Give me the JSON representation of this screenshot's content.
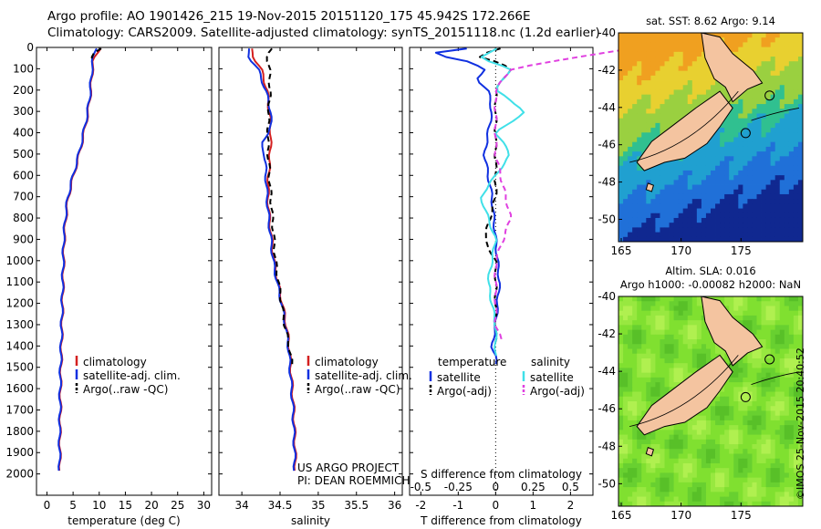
{
  "header": {
    "title_line1": "Argo profile: AO 1901426_215 19-Nov-2015 20151120_175 45.942S 172.266E",
    "title_line2": "Climatology: CARS2009. Satellite-adjusted climatology: synTS_20151118.nc (1.2d earlier)"
  },
  "colors": {
    "climatology": "#d42020",
    "satellite": "#1030e0",
    "argo": "#000000",
    "sat_salinity": "#40e0e8",
    "argo_salinity": "#e040e0",
    "land": "#f4c4a0"
  },
  "depth_axis": {
    "ticks": [
      "0",
      "100",
      "200",
      "300",
      "400",
      "500",
      "600",
      "700",
      "800",
      "900",
      "1000",
      "1100",
      "1200",
      "1300",
      "1400",
      "1500",
      "1600",
      "1700",
      "1800",
      "1900",
      "2000"
    ]
  },
  "chart_data": [
    {
      "type": "line",
      "xlabel": "temperature (deg C)",
      "xlim": [
        -2,
        31.5
      ],
      "ylim": [
        2100,
        0
      ],
      "xticks": [
        "0",
        "5",
        "10",
        "15",
        "20",
        "25",
        "30"
      ],
      "legend": [
        "climatology",
        "satellite-adj. clim.",
        "Argo(..raw -QC)"
      ],
      "series": [
        {
          "name": "climatology",
          "x": [
            10.1,
            9.6,
            8.9,
            8.7,
            8.4,
            7.9,
            7.1,
            6.2,
            5.1,
            4.1,
            3.6,
            3.3,
            3.2,
            3.1,
            3.0,
            2.9,
            2.8,
            2.7,
            2.6,
            2.6,
            2.5,
            2.5
          ],
          "y": [
            5,
            30,
            60,
            100,
            200,
            300,
            400,
            500,
            600,
            700,
            800,
            900,
            1000,
            1100,
            1200,
            1300,
            1400,
            1500,
            1600,
            1700,
            1800,
            2000
          ]
        },
        {
          "name": "satellite-adj. clim.",
          "x": [
            9.3,
            9.0,
            8.8,
            8.6,
            8.3,
            7.8,
            7.0,
            6.1,
            5.0,
            4.0,
            3.5,
            3.2,
            3.1,
            3.0,
            2.9,
            2.8,
            2.7,
            2.6,
            2.5,
            2.5,
            2.4,
            2.4
          ],
          "y": [
            5,
            30,
            60,
            100,
            200,
            300,
            400,
            500,
            600,
            700,
            800,
            900,
            1000,
            1100,
            1200,
            1300,
            1400,
            1500,
            1600,
            1700,
            1800,
            2000
          ]
        },
        {
          "name": "Argo(..raw -QC)",
          "x": [
            10.2,
            9.0,
            8.7,
            8.9
          ],
          "y": [
            5,
            25,
            50,
            80
          ]
        }
      ]
    },
    {
      "type": "line",
      "xlabel": "salinity",
      "xlim": [
        33.7,
        36.1
      ],
      "ylim": [
        2100,
        0
      ],
      "xticks": [
        "34",
        "34.5",
        "35",
        "35.5",
        "36"
      ],
      "legend": [
        "climatology",
        "satellite-adj. clim.",
        "Argo(..raw -QC)"
      ],
      "annotation_line1": "US ARGO PROJECT",
      "annotation_line2": "PI: DEAN ROEMMICH",
      "series": [
        {
          "name": "climatology",
          "x": [
            34.12,
            34.16,
            34.25,
            34.33,
            34.36,
            34.38,
            34.37,
            34.35,
            34.34,
            34.36,
            34.39,
            34.42,
            34.47,
            34.53,
            34.58,
            34.62,
            34.64,
            34.66,
            34.68,
            34.69,
            34.7,
            34.7
          ],
          "y": [
            5,
            50,
            100,
            200,
            300,
            400,
            500,
            600,
            700,
            800,
            900,
            1000,
            1100,
            1200,
            1300,
            1400,
            1500,
            1600,
            1700,
            1800,
            1900,
            2000
          ]
        },
        {
          "name": "satellite-adj. clim.",
          "x": [
            34.08,
            34.1,
            34.21,
            34.31,
            34.38,
            34.37,
            34.24,
            34.3,
            34.33,
            34.35,
            34.38,
            34.41,
            34.46,
            34.52,
            34.57,
            34.61,
            34.63,
            34.65,
            34.67,
            34.68,
            34.69,
            34.69
          ],
          "y": [
            5,
            50,
            100,
            200,
            300,
            400,
            450,
            500,
            700,
            800,
            900,
            1000,
            1100,
            1200,
            1300,
            1400,
            1500,
            1600,
            1700,
            1800,
            1900,
            2000
          ]
        },
        {
          "name": "Argo(..raw -QC)",
          "x": [
            34.38,
            34.34,
            34.34,
            34.36,
            34.37,
            34.35,
            34.34,
            34.36,
            34.4,
            34.44,
            34.5,
            34.56,
            34.62,
            34.66
          ],
          "y": [
            5,
            30,
            60,
            100,
            200,
            300,
            450,
            600,
            800,
            1000,
            1150,
            1300,
            1400,
            1500
          ]
        }
      ]
    },
    {
      "type": "line",
      "xlabel": "T difference from climatology",
      "xlabel2": "S difference from climatology",
      "xlim": [
        -2.3,
        2.6
      ],
      "ylim": [
        2100,
        0
      ],
      "xticks": [
        "-2",
        "-1",
        "0",
        "1",
        "2"
      ],
      "xticks2": [
        "-0.5",
        "-0.25",
        "0",
        "0.25",
        "0.5"
      ],
      "legend_title_t": "temperature",
      "legend_title_s": "salinity",
      "legend": [
        "satellite",
        "Argo(-adj)",
        "satellite",
        "Argo(-adj)"
      ],
      "series": [
        {
          "name": "temperature satellite",
          "x": [
            -0.8,
            -1.8,
            -0.8,
            -0.3,
            -0.5,
            -0.2,
            -0.1,
            -0.3,
            -0.1,
            0.0,
            0.1,
            0.0,
            -0.1,
            0.0,
            0.0
          ],
          "y": [
            5,
            30,
            60,
            100,
            150,
            200,
            300,
            500,
            700,
            900,
            1100,
            1300,
            1400,
            1450,
            1500
          ]
        },
        {
          "name": "temperature Argo(-adj)",
          "x": [
            0.1,
            -0.5,
            0.1,
            0.4,
            0.0,
            0.0,
            0.0,
            0.0,
            -0.3,
            0.0,
            0.0,
            0.0
          ],
          "y": [
            5,
            40,
            70,
            100,
            200,
            300,
            500,
            700,
            900,
            1000,
            1300,
            1400
          ]
        },
        {
          "name": "salinity satellite",
          "x": [
            0.0,
            -0.1,
            0.1,
            0.0,
            0.2,
            0.0,
            0.1,
            0.0,
            -0.1,
            0.0,
            -0.05,
            0.0,
            0.0
          ],
          "y": [
            5,
            50,
            100,
            200,
            300,
            400,
            500,
            600,
            700,
            900,
            1100,
            1300,
            1450
          ]
        },
        {
          "name": "salinity Argo(-adj)",
          "x": [
            0.9,
            0.6,
            0.1,
            0.0,
            0.0,
            0.0,
            0.1,
            0.0,
            0.0,
            0.05
          ],
          "y": [
            5,
            40,
            100,
            200,
            300,
            500,
            800,
            1000,
            1300,
            1400
          ]
        }
      ]
    }
  ],
  "maps": {
    "sst": {
      "title": "sat. SST: 8.62 Argo: 9.14",
      "yticks": [
        "-40",
        "-42",
        "-44",
        "-46",
        "-48",
        "-50"
      ],
      "xticks": [
        "165",
        "170",
        "175"
      ]
    },
    "sla": {
      "title_line1": "Altim. SLA: 0.016",
      "title_line2": "Argo h1000: -0.00082 h2000: NaN",
      "yticks": [
        "-40",
        "-42",
        "-44",
        "-46",
        "-48",
        "-50"
      ],
      "xticks": [
        "165",
        "170",
        "175"
      ]
    }
  },
  "footer": {
    "credit": "©IMOS 25-Nov-2015 20:40:52"
  }
}
